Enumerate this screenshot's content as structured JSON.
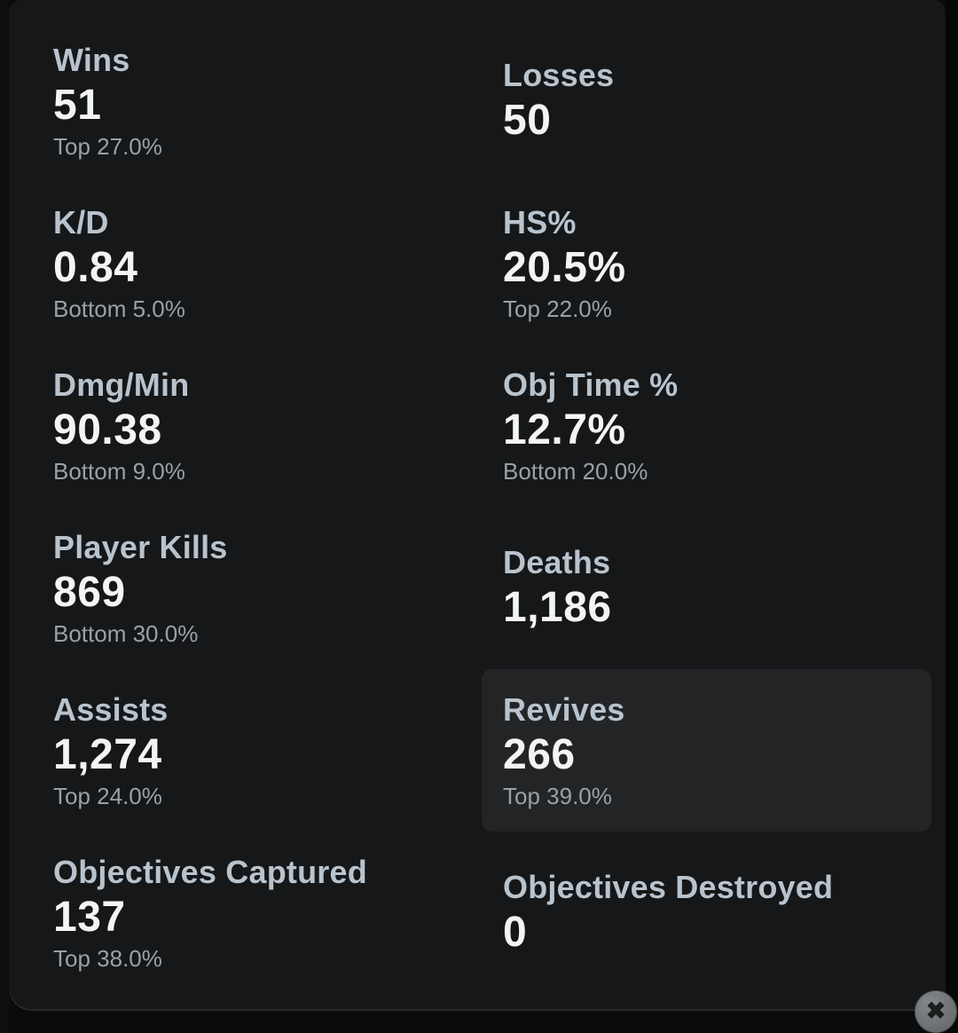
{
  "stats": [
    {
      "label": "Wins",
      "value": "51",
      "percentile": "Top 27.0%",
      "highlight": false
    },
    {
      "label": "Losses",
      "value": "50",
      "percentile": "",
      "highlight": false
    },
    {
      "label": "K/D",
      "value": "0.84",
      "percentile": "Bottom 5.0%",
      "highlight": false
    },
    {
      "label": "HS%",
      "value": "20.5%",
      "percentile": "Top 22.0%",
      "highlight": false
    },
    {
      "label": "Dmg/Min",
      "value": "90.38",
      "percentile": "Bottom 9.0%",
      "highlight": false
    },
    {
      "label": "Obj Time %",
      "value": "12.7%",
      "percentile": "Bottom 20.0%",
      "highlight": false
    },
    {
      "label": "Player Kills",
      "value": "869",
      "percentile": "Bottom 30.0%",
      "highlight": false
    },
    {
      "label": "Deaths",
      "value": "1,186",
      "percentile": "",
      "highlight": false
    },
    {
      "label": "Assists",
      "value": "1,274",
      "percentile": "Top 24.0%",
      "highlight": false
    },
    {
      "label": "Revives",
      "value": "266",
      "percentile": "Top 39.0%",
      "highlight": true
    },
    {
      "label": "Objectives Captured",
      "value": "137",
      "percentile": "Top 38.0%",
      "highlight": false
    },
    {
      "label": "Objectives Destroyed",
      "value": "0",
      "percentile": "",
      "highlight": false
    }
  ],
  "icons": {
    "close": "✖"
  },
  "colors": {
    "card-bg": "#151718",
    "highlight-bg": "#222426",
    "label-color": "#b8c3cd",
    "value-color": "#f2f4f5",
    "pct-color": "#99a1a8",
    "edge-line": "#28292b"
  }
}
